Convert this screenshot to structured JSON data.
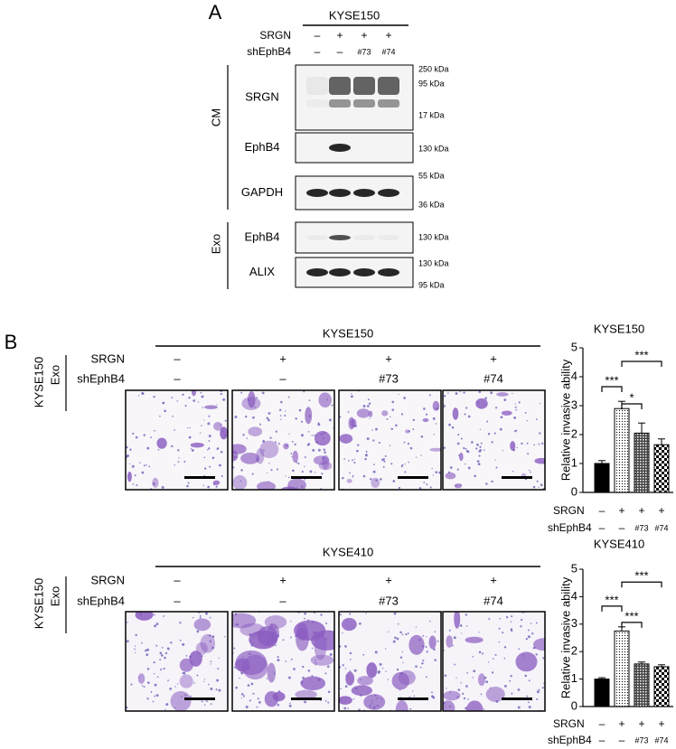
{
  "panel_a": {
    "label": "A",
    "cell_line": "KYSE150",
    "row_labels": [
      "SRGN",
      "shEphB4"
    ],
    "conditions": [
      [
        "–",
        "+",
        "+",
        "+"
      ],
      [
        "–",
        "–",
        "#73",
        "#74"
      ]
    ],
    "groups": [
      {
        "name": "CM",
        "blots": [
          {
            "label": "SRGN",
            "markers": [
              "250 kDa",
              "95 kDa",
              "17 kDa"
            ]
          },
          {
            "label": "EphB4",
            "markers": [
              "130 kDa"
            ]
          },
          {
            "label": "GAPDH",
            "markers": [
              "55 kDa",
              "36 kDa"
            ]
          }
        ]
      },
      {
        "name": "Exo",
        "blots": [
          {
            "label": "EphB4",
            "markers": [
              "130 kDa"
            ]
          },
          {
            "label": "ALIX",
            "markers": [
              "130 kDa",
              "95 kDa"
            ]
          }
        ]
      }
    ]
  },
  "panel_b": {
    "label": "B",
    "rows": [
      {
        "cell_line": "KYSE150",
        "exo_source": "KYSE150",
        "exo": "Exo",
        "row_labels": [
          "SRGN",
          "shEphB4"
        ],
        "conditions": [
          [
            "–",
            "+",
            "+",
            "+"
          ],
          [
            "–",
            "–",
            "#73",
            "#74"
          ]
        ],
        "chart": {
          "type": "bar",
          "title": "KYSE150",
          "ylabel": "Relative invasive ability",
          "ylim": [
            0,
            5
          ],
          "yticks": [
            0,
            1,
            2,
            3,
            4,
            5
          ],
          "row_labels": [
            "SRGN",
            "shEphB4"
          ],
          "conditions": [
            [
              "–",
              "+",
              "+",
              "+"
            ],
            [
              "–",
              "–",
              "#73",
              "#74"
            ]
          ],
          "values": [
            1.0,
            2.9,
            2.05,
            1.65
          ],
          "errors": [
            0.1,
            0.25,
            0.35,
            0.2
          ],
          "significance": [
            "***",
            "*",
            "***"
          ]
        }
      },
      {
        "cell_line": "KYSE410",
        "exo_source": "KYSE150",
        "exo": "Exo",
        "row_labels": [
          "SRGN",
          "shEphB4"
        ],
        "conditions": [
          [
            "–",
            "+",
            "+",
            "+"
          ],
          [
            "–",
            "–",
            "#73",
            "#74"
          ]
        ],
        "chart": {
          "type": "bar",
          "title": "KYSE410",
          "ylabel": "Relative invasive ability",
          "ylim": [
            0,
            5
          ],
          "yticks": [
            0,
            1,
            2,
            3,
            4,
            5
          ],
          "row_labels": [
            "SRGN",
            "shEphB4"
          ],
          "conditions": [
            [
              "–",
              "+",
              "+",
              "+"
            ],
            [
              "–",
              "–",
              "#73",
              "#74"
            ]
          ],
          "values": [
            1.0,
            2.75,
            1.55,
            1.45
          ],
          "errors": [
            0.05,
            0.15,
            0.07,
            0.07
          ],
          "significance": [
            "***",
            "***",
            "***"
          ]
        }
      }
    ]
  }
}
